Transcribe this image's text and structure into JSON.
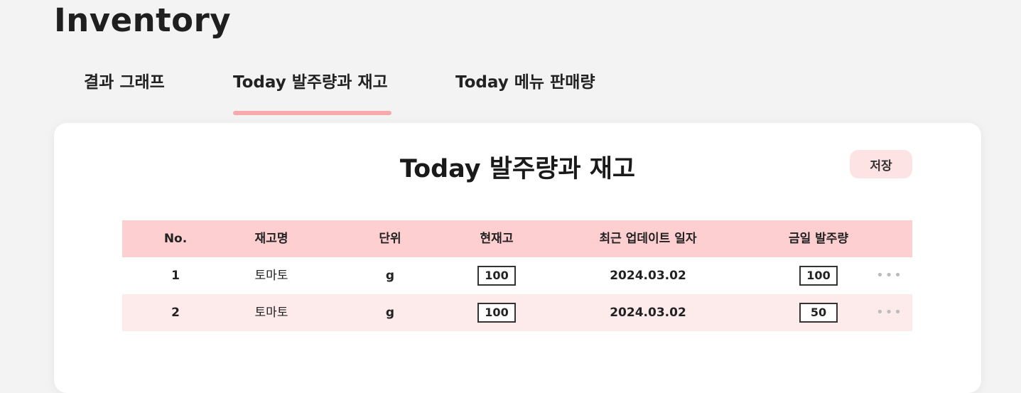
{
  "page": {
    "title": "Inventory"
  },
  "tabs": [
    {
      "label": "결과 그래프"
    },
    {
      "label": "Today 발주량과 재고"
    },
    {
      "label": "Today 메뉴 판매량"
    }
  ],
  "card": {
    "title": "Today 발주량과 재고",
    "save_label": "저장"
  },
  "table": {
    "headers": [
      "No.",
      "재고명",
      "단위",
      "현재고",
      "최근 업데이트 일자",
      "금일 발주량"
    ],
    "rows": [
      {
        "no": "1",
        "name": "토마토",
        "unit": "g",
        "stock": "100",
        "updated": "2024.03.02",
        "order": "100",
        "more": "•••"
      },
      {
        "no": "2",
        "name": "토마토",
        "unit": "g",
        "stock": "100",
        "updated": "2024.03.02",
        "order": "50",
        "more": "•••"
      }
    ]
  },
  "colors": {
    "accent": "#f7a9ab",
    "header_bg": "#fecfd1",
    "alt_row_bg": "#fdeaeb",
    "button_bg": "#fde3e4"
  }
}
